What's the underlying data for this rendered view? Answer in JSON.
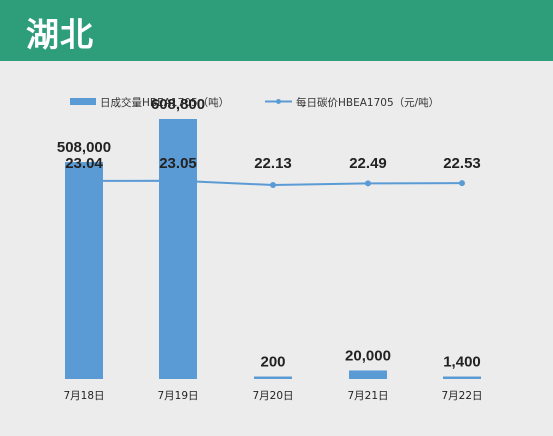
{
  "header": {
    "title": "湖北"
  },
  "colors": {
    "header_bg": "#2e9e7a",
    "bar": "#5b9bd5",
    "line": "#5b9bd5",
    "background": "#ececec"
  },
  "chart_data": {
    "type": "bar",
    "categories": [
      "7月18日",
      "7月19日",
      "7月20日",
      "7月21日",
      "7月22日"
    ],
    "series": [
      {
        "name": "日成交量HBEA1705（吨）",
        "type": "bar",
        "axis": "left",
        "values": [
          508000,
          608800,
          200,
          20000,
          1400
        ],
        "labels": [
          "508,000",
          "608,800",
          "200",
          "20,000",
          "1,400"
        ]
      },
      {
        "name": "每日碳价HBEA1705（元/吨）",
        "type": "line",
        "axis": "right",
        "values": [
          23.04,
          23.05,
          22.13,
          22.49,
          22.53
        ],
        "labels": [
          "23.04",
          "23.05",
          "22.13",
          "22.49",
          "22.53"
        ]
      }
    ],
    "legend": "top",
    "grid": false
  }
}
